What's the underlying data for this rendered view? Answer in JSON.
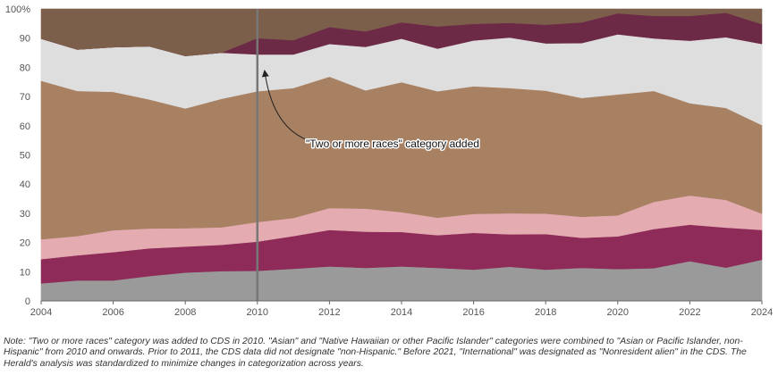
{
  "chart_data": {
    "type": "area",
    "stacked": true,
    "x": [
      2004,
      2005,
      2006,
      2007,
      2008,
      2009,
      2010,
      2011,
      2012,
      2013,
      2014,
      2015,
      2016,
      2017,
      2018,
      2019,
      2020,
      2021,
      2022,
      2023,
      2024
    ],
    "xticks": [
      2004,
      2006,
      2008,
      2010,
      2012,
      2014,
      2016,
      2018,
      2020,
      2022,
      2024
    ],
    "yticks": [
      0,
      10,
      20,
      30,
      40,
      50,
      60,
      70,
      80,
      90,
      100
    ],
    "ytick_labels": [
      "0",
      "10",
      "20",
      "30",
      "40",
      "50",
      "60",
      "70",
      "80",
      "90",
      "100%"
    ],
    "ylim": [
      0,
      100
    ],
    "xlim": [
      2004,
      2024
    ],
    "grid": true,
    "legend": "none",
    "series": [
      {
        "name": "layer-1",
        "color": "#9a9a9a",
        "values": [
          6,
          7,
          7,
          8.5,
          9.7,
          10.2,
          10.3,
          11,
          11.8,
          11.3,
          11.8,
          11.3,
          10.7,
          11.7,
          10.7,
          11.3,
          10.9,
          11.2,
          13.6,
          11.4,
          14.1
        ]
      },
      {
        "name": "layer-2",
        "color": "#8e2b58",
        "values": [
          8.3,
          8.6,
          9.7,
          9.5,
          8.9,
          9,
          10,
          11.2,
          12.5,
          12.4,
          11.8,
          11.2,
          12.6,
          11.1,
          12.2,
          10.3,
          11.2,
          13.4,
          12.5,
          13.7,
          10.2
        ]
      },
      {
        "name": "layer-3",
        "color": "#e4abb1",
        "values": [
          6.8,
          6.6,
          7.5,
          6.8,
          6.3,
          6,
          6.7,
          6.2,
          7.5,
          7.9,
          6.8,
          6,
          6.5,
          7.2,
          7,
          7.2,
          7.2,
          9.3,
          10,
          9.5,
          5.6
        ]
      },
      {
        "name": "layer-4",
        "color": "#a88062",
        "values": [
          54.3,
          49.7,
          47.4,
          44.2,
          41,
          44,
          44.8,
          44.5,
          45,
          40.5,
          44.5,
          43.3,
          43.7,
          42.9,
          42.1,
          40.7,
          41.4,
          38,
          31.6,
          31.5,
          30.3
        ]
      },
      {
        "name": "layer-5",
        "color": "#dedede",
        "values": [
          14.4,
          14.2,
          15.3,
          18.2,
          18,
          15.8,
          12.6,
          11.5,
          11.2,
          14.9,
          14.9,
          14.6,
          15.7,
          17.3,
          16.2,
          18.8,
          20.6,
          18,
          21.4,
          24.2,
          27.8
        ]
      },
      {
        "name": "layer-6",
        "color": "#6d2a46",
        "values": [
          0,
          0,
          0,
          0,
          0,
          0,
          5.6,
          4.9,
          5.8,
          5.3,
          5.6,
          7.6,
          5.7,
          5,
          6.4,
          7.1,
          7.2,
          7.7,
          8.5,
          8.4,
          6.8
        ]
      },
      {
        "name": "layer-7",
        "color": "#7c5f4b",
        "values": [
          10.2,
          13.9,
          13.1,
          12.8,
          16.1,
          15,
          10,
          10.7,
          6.2,
          7.7,
          4.6,
          6,
          5.1,
          4.8,
          5.4,
          4.6,
          1.5,
          2.4,
          2.4,
          1.3,
          5.2
        ]
      }
    ],
    "annotations": [
      {
        "text": "\"Two or more races\" category added",
        "marker_x": 2010
      }
    ]
  },
  "note": "Note: \"Two or more races\" category was added to CDS in 2010. \"Asian\" and \"Native Hawaiian or other Pacific Islander\" categories were combined to \"Asian or Pacific Islander, non-Hispanic\" from 2010 and onwards. Prior to 2011, the CDS data did not designate \"non-Hispanic.\" Before 2021, \"International\" was designated as \"Nonresident alien\" in the CDS. The Herald's analysis was standardized to minimize changes in categorization across years."
}
